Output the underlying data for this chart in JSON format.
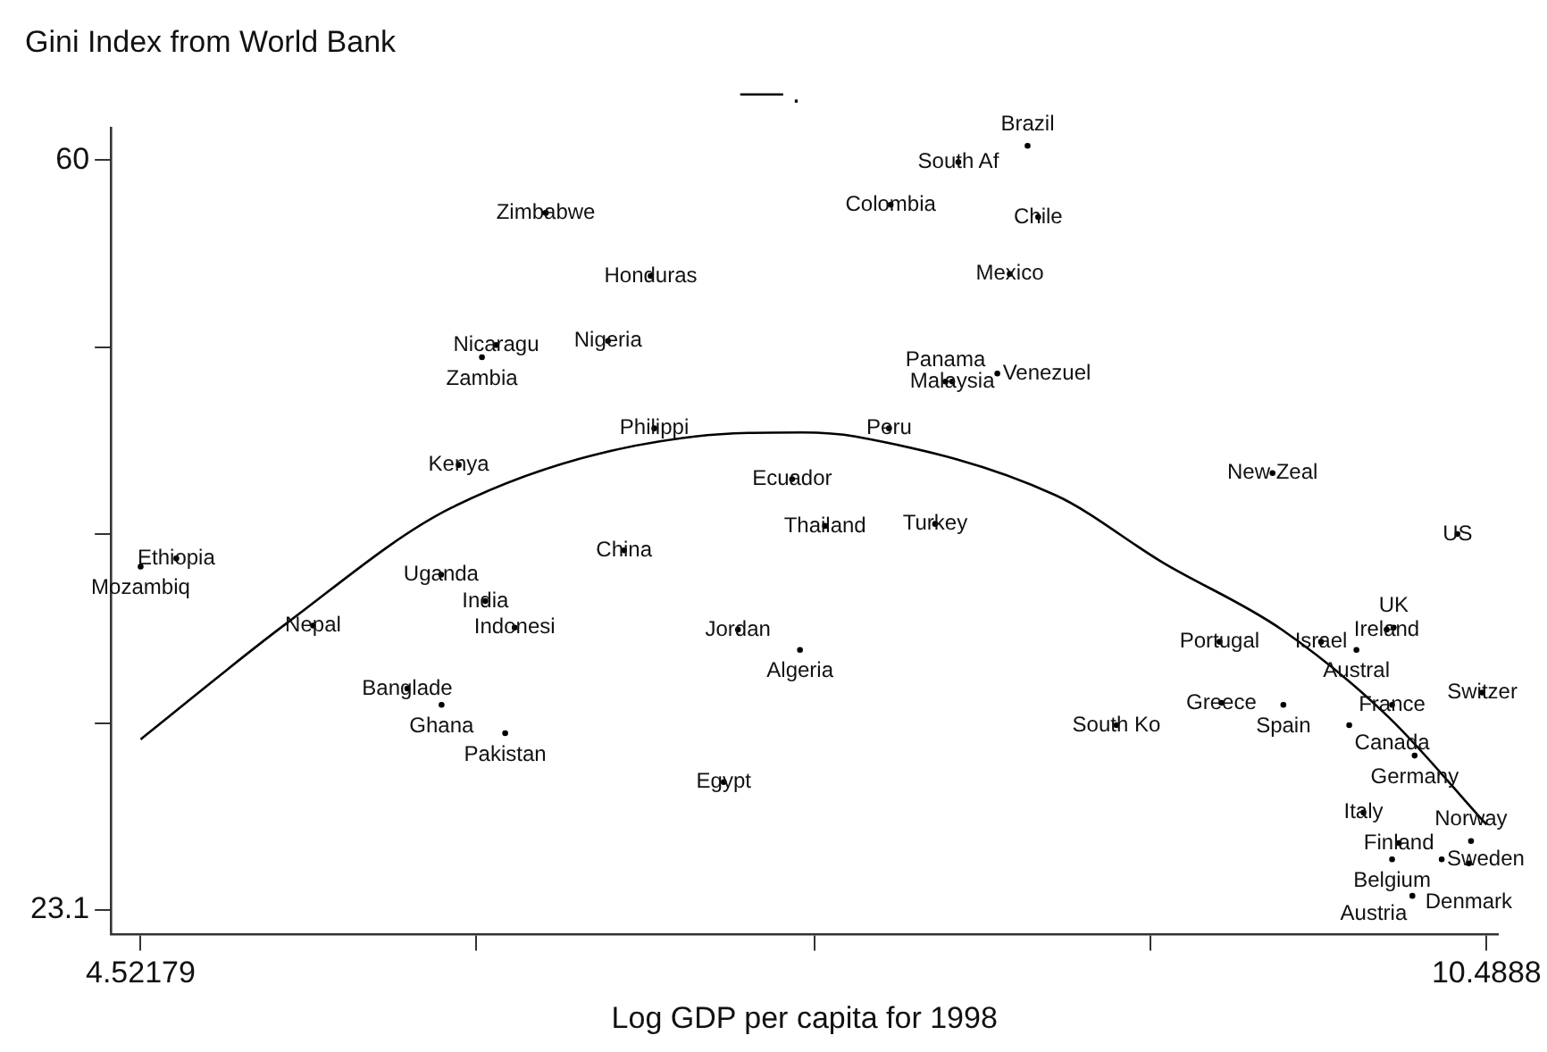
{
  "chart_data": {
    "type": "scatter",
    "title": "Gini Index from World Bank",
    "xlabel": "Log GDP per capita for 1998",
    "xlim": [
      4.39,
      10.54
    ],
    "ylim": [
      21.9,
      61.6
    ],
    "xticks": [
      4.52179,
      {
        "value": 6.01,
        "label": null
      },
      {
        "value": 7.51,
        "label": null
      },
      {
        "value": 9.0,
        "label": null
      },
      10.4888
    ],
    "yticks": [
      23.1,
      {
        "value": 32.3,
        "label": null
      },
      {
        "value": 41.6,
        "label": null
      },
      {
        "value": 50.8,
        "label": null
      },
      60
    ],
    "grid": false,
    "legend": "top",
    "series": [
      {
        "type": "scatter",
        "color": "#000000",
        "x": [
          6.318,
          6.783,
          6.098,
          6.035,
          6.594,
          6.799,
          5.932,
          8.147,
          8.454,
          7.847,
          8.501,
          8.375,
          8.12,
          8.09,
          8.32,
          7.84,
          7.41,
          9.54,
          4.68,
          4.52179,
          5.854,
          6.05,
          6.18,
          5.286,
          6.665,
          5.704,
          5.856,
          6.138,
          7.107,
          7.17,
          7.445,
          7.556,
          8.044,
          10.36,
          9.305,
          9.755,
          10.046,
          10.077,
          9.912,
          9.313,
          9.588,
          10.07,
          10.47,
          9.88,
          10.17,
          8.848,
          9.943,
          10.1,
          10.42,
          10.07,
          10.41,
          10.29,
          10.16
        ],
        "values": [
          57.4,
          54.3,
          50.9,
          50.3,
          51.1,
          46.8,
          45.0,
          59.9,
          60.7,
          57.8,
          57.2,
          54.4,
          49.1,
          49.1,
          49.5,
          46.8,
          44.3,
          44.6,
          40.4,
          40.0,
          39.6,
          38.3,
          37.0,
          37.1,
          40.8,
          34.0,
          33.2,
          31.8,
          29.4,
          36.9,
          35.9,
          42.0,
          42.1,
          41.6,
          36.3,
          36.3,
          36.9,
          37.0,
          35.9,
          33.3,
          33.2,
          33.2,
          33.8,
          32.2,
          30.7,
          32.2,
          27.9,
          26.4,
          26.5,
          25.6,
          25.4,
          25.6,
          23.8
        ],
        "value_labels": [
          "Zimbabwe",
          "Honduras",
          "Nicaragu",
          "Zambia",
          "Nigeria",
          "Philippi",
          "Kenya",
          "South Af",
          "Brazil",
          "Colombia",
          "Chile",
          "Mexico",
          "Malaysia",
          "Panama",
          "Venezuel",
          "Peru",
          "Ecuador",
          "New Zeal",
          "Ethiopia",
          "Mozambiq",
          "Uganda",
          "India",
          "Indonesi",
          "Nepal",
          "China",
          "Banglade",
          "Ghana",
          "Pakistan",
          "Egypt",
          "Jordan",
          "Algeria",
          "Thailand",
          "Turkey",
          "US",
          "Portugal",
          "Israel",
          "Ireland",
          "UK",
          "Austral",
          "Greece",
          "Spain",
          "France",
          "Switzer",
          "Canada",
          "Germany",
          "South Ko",
          "Italy",
          "Finland",
          "Norway",
          "Belgium",
          "Denmark",
          "Sweden",
          "Austria"
        ]
      },
      {
        "type": "line",
        "name": ".",
        "color": "#000000",
        "line_style": "solid",
        "x": [
          4.52179,
          5.168,
          5.901,
          6.98,
          7.453,
          7.69,
          8.58,
          9.053,
          9.581,
          10.054,
          10.4888
        ],
        "values": [
          31.5,
          37.2,
          42.9,
          46.4,
          46.6,
          46.4,
          43.5,
          40.2,
          36.9,
          32.6,
          27.3
        ]
      }
    ]
  }
}
